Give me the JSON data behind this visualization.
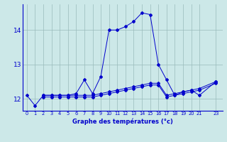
{
  "background_color": "#cce8e8",
  "line_color": "#0000cc",
  "grid_color": "#99bbbb",
  "xlabel": "Graphe des températures (°c)",
  "series1_x": [
    0,
    1,
    2,
    3,
    4,
    5,
    6,
    7,
    8,
    9,
    10,
    11,
    12,
    13,
    14,
    15,
    16,
    17,
    18,
    19,
    20,
    21,
    23
  ],
  "series1_y": [
    12.1,
    11.8,
    12.1,
    12.1,
    12.1,
    12.1,
    12.15,
    12.55,
    12.15,
    12.65,
    14.0,
    14.0,
    14.1,
    14.25,
    14.5,
    14.45,
    13.0,
    12.55,
    12.1,
    12.2,
    12.25,
    12.1,
    12.5
  ],
  "series2_x": [
    2,
    3,
    4,
    5,
    6,
    7,
    8,
    9,
    10,
    11,
    12,
    13,
    14,
    15,
    16,
    17,
    18,
    19,
    20,
    21,
    23
  ],
  "series2_y": [
    12.05,
    12.05,
    12.05,
    12.05,
    12.05,
    12.05,
    12.05,
    12.1,
    12.15,
    12.2,
    12.25,
    12.3,
    12.35,
    12.4,
    12.4,
    12.05,
    12.1,
    12.15,
    12.2,
    12.25,
    12.45
  ],
  "series3_x": [
    2,
    3,
    4,
    5,
    6,
    7,
    8,
    9,
    10,
    11,
    12,
    13,
    14,
    15,
    16,
    17,
    18,
    19,
    20,
    21,
    23
  ],
  "series3_y": [
    12.1,
    12.1,
    12.1,
    12.1,
    12.1,
    12.1,
    12.1,
    12.15,
    12.2,
    12.25,
    12.3,
    12.35,
    12.4,
    12.45,
    12.45,
    12.1,
    12.15,
    12.2,
    12.25,
    12.3,
    12.5
  ],
  "ylim": [
    11.65,
    14.75
  ],
  "yticks": [
    12,
    13,
    14
  ],
  "xticks": [
    0,
    1,
    2,
    3,
    4,
    5,
    6,
    7,
    8,
    9,
    10,
    11,
    12,
    13,
    14,
    15,
    16,
    17,
    18,
    19,
    20,
    21,
    23
  ],
  "xlim": [
    -0.5,
    23.8
  ]
}
